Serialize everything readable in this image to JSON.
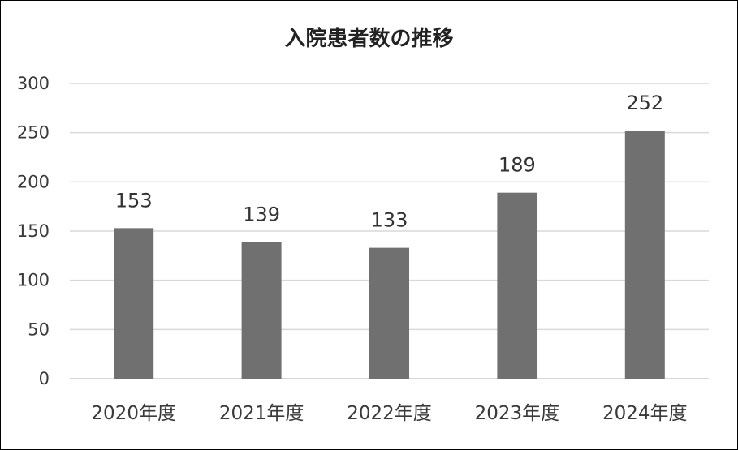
{
  "chart_data": {
    "type": "bar",
    "title": "入院患者数の推移",
    "categories": [
      "2020年度",
      "2021年度",
      "2022年度",
      "2023年度",
      "2024年度"
    ],
    "values": [
      153,
      139,
      133,
      189,
      252
    ],
    "y_ticks": [
      "0",
      "50",
      "100",
      "150",
      "200",
      "250",
      "300"
    ],
    "ylim": [
      0,
      300
    ],
    "grid": true,
    "data_labels": true,
    "legend": "none",
    "bar_color": "#717071"
  }
}
